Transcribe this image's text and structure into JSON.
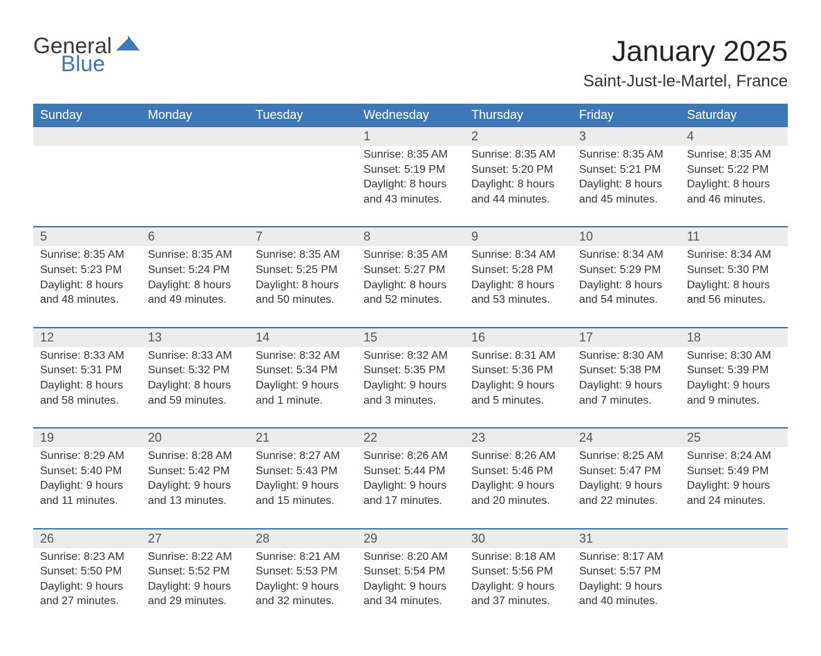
{
  "logo": {
    "word1": "General",
    "word2": "Blue",
    "word1_color": "#3a3a3a",
    "word2_color": "#3e78b6",
    "mark_color": "#3e78b6"
  },
  "title": "January 2025",
  "location": "Saint-Just-le-Martel, France",
  "colors": {
    "header_bg": "#3e78b6",
    "header_text": "#ffffff",
    "daynum_bg": "#ececec",
    "daynum_text": "#555555",
    "body_text": "#333333",
    "week_divider": "#3e78b6",
    "page_bg": "#ffffff"
  },
  "fonts": {
    "title_size_pt": 32,
    "location_size_pt": 18,
    "weekday_size_pt": 14,
    "daynum_size_pt": 14,
    "body_size_pt": 12
  },
  "weekdays": [
    "Sunday",
    "Monday",
    "Tuesday",
    "Wednesday",
    "Thursday",
    "Friday",
    "Saturday"
  ],
  "weeks": [
    [
      null,
      null,
      null,
      {
        "n": "1",
        "sunrise": "8:35 AM",
        "sunset": "5:19 PM",
        "dl1": "Daylight: 8 hours",
        "dl2": "and 43 minutes."
      },
      {
        "n": "2",
        "sunrise": "8:35 AM",
        "sunset": "5:20 PM",
        "dl1": "Daylight: 8 hours",
        "dl2": "and 44 minutes."
      },
      {
        "n": "3",
        "sunrise": "8:35 AM",
        "sunset": "5:21 PM",
        "dl1": "Daylight: 8 hours",
        "dl2": "and 45 minutes."
      },
      {
        "n": "4",
        "sunrise": "8:35 AM",
        "sunset": "5:22 PM",
        "dl1": "Daylight: 8 hours",
        "dl2": "and 46 minutes."
      }
    ],
    [
      {
        "n": "5",
        "sunrise": "8:35 AM",
        "sunset": "5:23 PM",
        "dl1": "Daylight: 8 hours",
        "dl2": "and 48 minutes."
      },
      {
        "n": "6",
        "sunrise": "8:35 AM",
        "sunset": "5:24 PM",
        "dl1": "Daylight: 8 hours",
        "dl2": "and 49 minutes."
      },
      {
        "n": "7",
        "sunrise": "8:35 AM",
        "sunset": "5:25 PM",
        "dl1": "Daylight: 8 hours",
        "dl2": "and 50 minutes."
      },
      {
        "n": "8",
        "sunrise": "8:35 AM",
        "sunset": "5:27 PM",
        "dl1": "Daylight: 8 hours",
        "dl2": "and 52 minutes."
      },
      {
        "n": "9",
        "sunrise": "8:34 AM",
        "sunset": "5:28 PM",
        "dl1": "Daylight: 8 hours",
        "dl2": "and 53 minutes."
      },
      {
        "n": "10",
        "sunrise": "8:34 AM",
        "sunset": "5:29 PM",
        "dl1": "Daylight: 8 hours",
        "dl2": "and 54 minutes."
      },
      {
        "n": "11",
        "sunrise": "8:34 AM",
        "sunset": "5:30 PM",
        "dl1": "Daylight: 8 hours",
        "dl2": "and 56 minutes."
      }
    ],
    [
      {
        "n": "12",
        "sunrise": "8:33 AM",
        "sunset": "5:31 PM",
        "dl1": "Daylight: 8 hours",
        "dl2": "and 58 minutes."
      },
      {
        "n": "13",
        "sunrise": "8:33 AM",
        "sunset": "5:32 PM",
        "dl1": "Daylight: 8 hours",
        "dl2": "and 59 minutes."
      },
      {
        "n": "14",
        "sunrise": "8:32 AM",
        "sunset": "5:34 PM",
        "dl1": "Daylight: 9 hours",
        "dl2": "and 1 minute."
      },
      {
        "n": "15",
        "sunrise": "8:32 AM",
        "sunset": "5:35 PM",
        "dl1": "Daylight: 9 hours",
        "dl2": "and 3 minutes."
      },
      {
        "n": "16",
        "sunrise": "8:31 AM",
        "sunset": "5:36 PM",
        "dl1": "Daylight: 9 hours",
        "dl2": "and 5 minutes."
      },
      {
        "n": "17",
        "sunrise": "8:30 AM",
        "sunset": "5:38 PM",
        "dl1": "Daylight: 9 hours",
        "dl2": "and 7 minutes."
      },
      {
        "n": "18",
        "sunrise": "8:30 AM",
        "sunset": "5:39 PM",
        "dl1": "Daylight: 9 hours",
        "dl2": "and 9 minutes."
      }
    ],
    [
      {
        "n": "19",
        "sunrise": "8:29 AM",
        "sunset": "5:40 PM",
        "dl1": "Daylight: 9 hours",
        "dl2": "and 11 minutes."
      },
      {
        "n": "20",
        "sunrise": "8:28 AM",
        "sunset": "5:42 PM",
        "dl1": "Daylight: 9 hours",
        "dl2": "and 13 minutes."
      },
      {
        "n": "21",
        "sunrise": "8:27 AM",
        "sunset": "5:43 PM",
        "dl1": "Daylight: 9 hours",
        "dl2": "and 15 minutes."
      },
      {
        "n": "22",
        "sunrise": "8:26 AM",
        "sunset": "5:44 PM",
        "dl1": "Daylight: 9 hours",
        "dl2": "and 17 minutes."
      },
      {
        "n": "23",
        "sunrise": "8:26 AM",
        "sunset": "5:46 PM",
        "dl1": "Daylight: 9 hours",
        "dl2": "and 20 minutes."
      },
      {
        "n": "24",
        "sunrise": "8:25 AM",
        "sunset": "5:47 PM",
        "dl1": "Daylight: 9 hours",
        "dl2": "and 22 minutes."
      },
      {
        "n": "25",
        "sunrise": "8:24 AM",
        "sunset": "5:49 PM",
        "dl1": "Daylight: 9 hours",
        "dl2": "and 24 minutes."
      }
    ],
    [
      {
        "n": "26",
        "sunrise": "8:23 AM",
        "sunset": "5:50 PM",
        "dl1": "Daylight: 9 hours",
        "dl2": "and 27 minutes."
      },
      {
        "n": "27",
        "sunrise": "8:22 AM",
        "sunset": "5:52 PM",
        "dl1": "Daylight: 9 hours",
        "dl2": "and 29 minutes."
      },
      {
        "n": "28",
        "sunrise": "8:21 AM",
        "sunset": "5:53 PM",
        "dl1": "Daylight: 9 hours",
        "dl2": "and 32 minutes."
      },
      {
        "n": "29",
        "sunrise": "8:20 AM",
        "sunset": "5:54 PM",
        "dl1": "Daylight: 9 hours",
        "dl2": "and 34 minutes."
      },
      {
        "n": "30",
        "sunrise": "8:18 AM",
        "sunset": "5:56 PM",
        "dl1": "Daylight: 9 hours",
        "dl2": "and 37 minutes."
      },
      {
        "n": "31",
        "sunrise": "8:17 AM",
        "sunset": "5:57 PM",
        "dl1": "Daylight: 9 hours",
        "dl2": "and 40 minutes."
      },
      null
    ]
  ],
  "labels": {
    "sunrise_prefix": "Sunrise: ",
    "sunset_prefix": "Sunset: "
  }
}
